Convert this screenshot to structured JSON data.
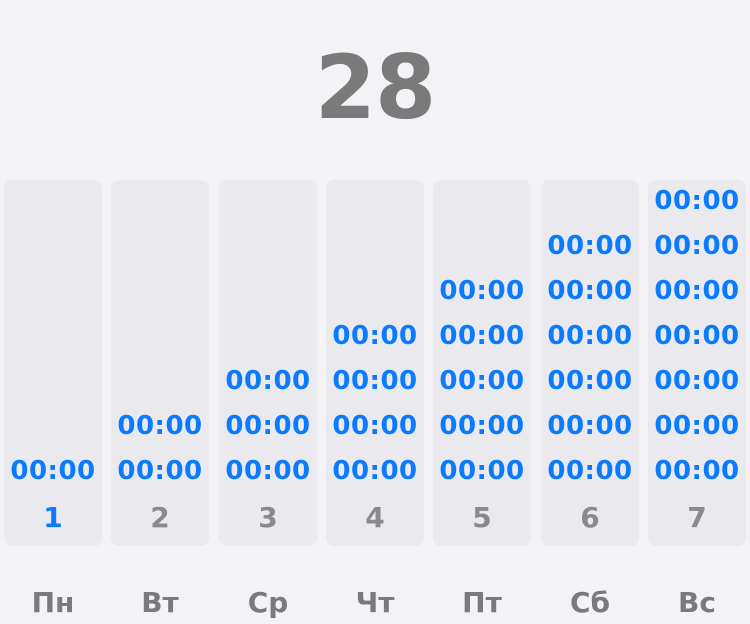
{
  "header": {
    "number": "28"
  },
  "days": [
    {
      "weekday": "Пн",
      "number": "1",
      "active": true,
      "times": [
        "00:00"
      ]
    },
    {
      "weekday": "Вт",
      "number": "2",
      "active": false,
      "times": [
        "00:00",
        "00:00"
      ]
    },
    {
      "weekday": "Ср",
      "number": "3",
      "active": false,
      "times": [
        "00:00",
        "00:00",
        "00:00"
      ]
    },
    {
      "weekday": "Чт",
      "number": "4",
      "active": false,
      "times": [
        "00:00",
        "00:00",
        "00:00",
        "00:00"
      ]
    },
    {
      "weekday": "Пт",
      "number": "5",
      "active": false,
      "times": [
        "00:00",
        "00:00",
        "00:00",
        "00:00",
        "00:00"
      ]
    },
    {
      "weekday": "Сб",
      "number": "6",
      "active": false,
      "times": [
        "00:00",
        "00:00",
        "00:00",
        "00:00",
        "00:00",
        "00:00"
      ]
    },
    {
      "weekday": "Вс",
      "number": "7",
      "active": false,
      "times": [
        "00:00",
        "00:00",
        "00:00",
        "00:00",
        "00:00",
        "00:00",
        "00:00"
      ]
    }
  ],
  "colors": {
    "accent": "#0a7aff",
    "muted": "#8a8a8e",
    "background": "#f2f2f7",
    "column": "#e9e9ee"
  }
}
